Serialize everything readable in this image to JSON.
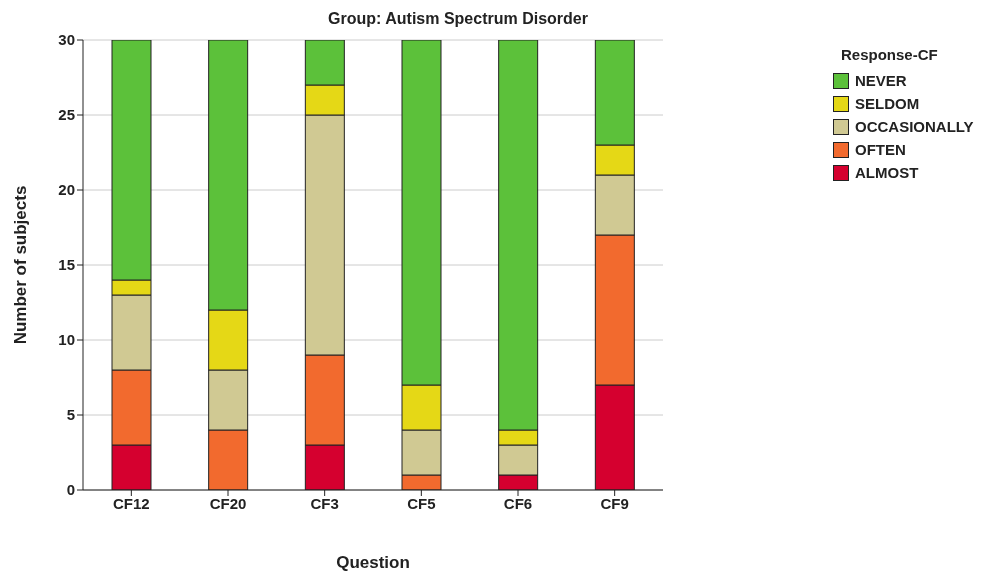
{
  "chart_data": {
    "type": "bar",
    "title": "Group: Autism Spectrum Disorder",
    "xlabel": "Question",
    "ylabel": "Number of subjects",
    "legend_title": "Response-CF",
    "categories": [
      "CF12",
      "CF20",
      "CF3",
      "CF5",
      "CF6",
      "CF9"
    ],
    "stacked": true,
    "ylim": [
      0,
      30
    ],
    "yticks": [
      0,
      5,
      10,
      15,
      20,
      25,
      30
    ],
    "grid": "y",
    "legend": "top right",
    "series": [
      {
        "name": "ALMOST",
        "color": "#d5002f",
        "values": [
          3,
          0,
          3,
          0,
          1,
          7
        ]
      },
      {
        "name": "OFTEN",
        "color": "#f26a2e",
        "values": [
          5,
          4,
          6,
          1,
          0,
          10
        ]
      },
      {
        "name": "OCCASIONALLY",
        "color": "#d0c993",
        "values": [
          5,
          4,
          16,
          3,
          2,
          4
        ]
      },
      {
        "name": "SELDOM",
        "color": "#e5d816",
        "values": [
          1,
          4,
          2,
          3,
          1,
          2
        ]
      },
      {
        "name": "NEVER",
        "color": "#5cc13a",
        "values": [
          16,
          18,
          3,
          23,
          26,
          7
        ]
      }
    ]
  }
}
